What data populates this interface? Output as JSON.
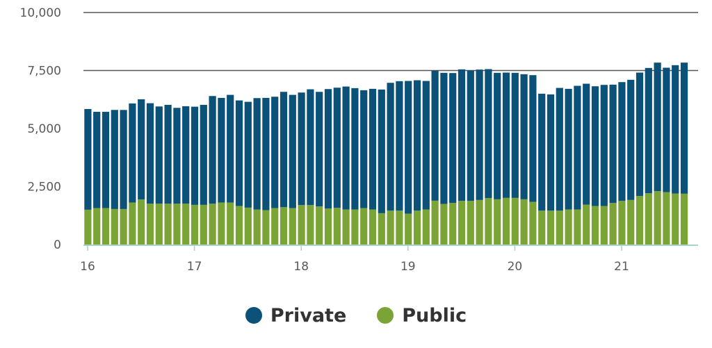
{
  "chart_data": {
    "type": "bar",
    "stacked": true,
    "title": "",
    "xlabel": "",
    "ylabel": "",
    "ylim": [
      0,
      10000
    ],
    "yticks": [
      {
        "value": 0,
        "label": "0"
      },
      {
        "value": 2500,
        "label": "2,500"
      },
      {
        "value": 5000,
        "label": "5,000"
      },
      {
        "value": 7500,
        "label": "7,500"
      },
      {
        "value": 10000,
        "label": "10,000"
      }
    ],
    "xticks": [
      {
        "index": 0,
        "label": "16"
      },
      {
        "index": 12,
        "label": "17"
      },
      {
        "index": 24,
        "label": "18"
      },
      {
        "index": 36,
        "label": "19"
      },
      {
        "index": 48,
        "label": "20"
      },
      {
        "index": 60,
        "label": "21"
      }
    ],
    "grid": "horizontal lines at 7,500 and 10,000",
    "legend_position": "bottom-center",
    "colors": {
      "private": "#0b5178",
      "public": "#7ba437",
      "baseline": "#a8d4c8",
      "grid": "#555555"
    },
    "series": [
      {
        "name": "Public",
        "values": [
          1500,
          1570,
          1570,
          1530,
          1530,
          1810,
          1940,
          1760,
          1760,
          1760,
          1760,
          1760,
          1710,
          1710,
          1760,
          1810,
          1810,
          1660,
          1590,
          1510,
          1480,
          1570,
          1610,
          1570,
          1700,
          1700,
          1640,
          1550,
          1580,
          1510,
          1510,
          1570,
          1510,
          1350,
          1460,
          1460,
          1330,
          1460,
          1510,
          1890,
          1750,
          1790,
          1880,
          1880,
          1920,
          2000,
          1950,
          2010,
          2010,
          1950,
          1840,
          1460,
          1460,
          1460,
          1510,
          1510,
          1720,
          1660,
          1660,
          1790,
          1880,
          1920,
          2090,
          2210,
          2300,
          2260,
          2200,
          2190
        ]
      },
      {
        "name": "Private",
        "values": [
          4340,
          4150,
          4150,
          4270,
          4270,
          4270,
          4320,
          4330,
          4190,
          4260,
          4130,
          4200,
          4230,
          4310,
          4640,
          4510,
          4640,
          4550,
          4560,
          4800,
          4840,
          4800,
          4970,
          4880,
          4850,
          4990,
          4940,
          5150,
          5180,
          5300,
          5230,
          5080,
          5200,
          5330,
          5510,
          5580,
          5720,
          5620,
          5540,
          5600,
          5650,
          5600,
          5670,
          5620,
          5620,
          5560,
          5450,
          5400,
          5390,
          5390,
          5460,
          5040,
          5010,
          5290,
          5200,
          5330,
          5210,
          5160,
          5220,
          5100,
          5120,
          5180,
          5320,
          5400,
          5540,
          5360,
          5530,
          5650
        ]
      }
    ],
    "n_bars": 68
  },
  "legend": {
    "items": [
      {
        "label": "Private",
        "color": "#0b5178"
      },
      {
        "label": "Public",
        "color": "#7ba437"
      }
    ]
  }
}
